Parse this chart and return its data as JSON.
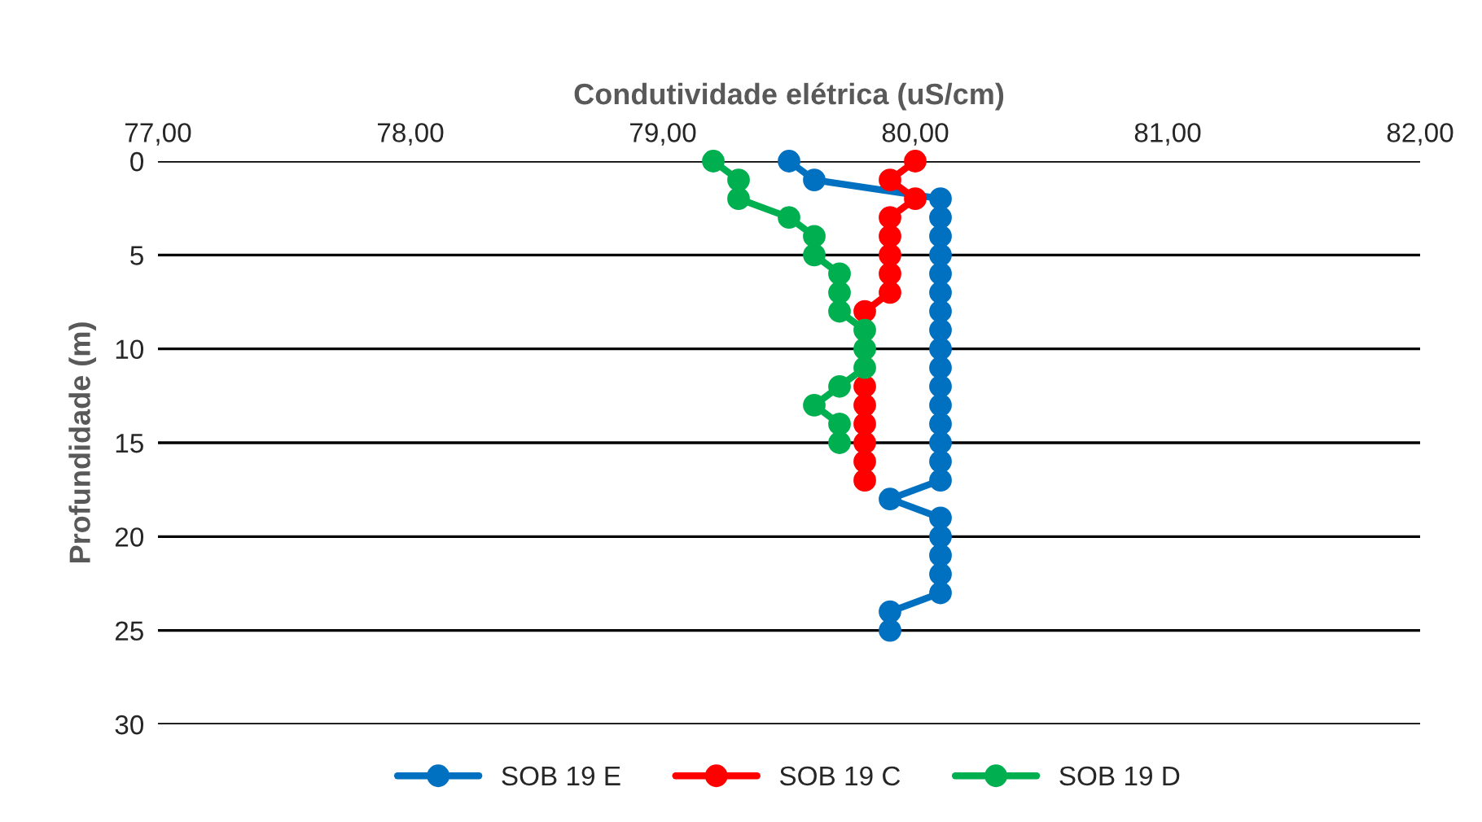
{
  "chart_data": {
    "type": "line",
    "xlabel": "Condutividade elétrica (uS/cm)",
    "ylabel": "Profundidade (m)",
    "xlim": [
      77,
      82
    ],
    "xticks": [
      {
        "value": 77,
        "label": "77,00"
      },
      {
        "value": 78,
        "label": "78,00"
      },
      {
        "value": 79,
        "label": "79,00"
      },
      {
        "value": 80,
        "label": "80,00"
      },
      {
        "value": 81,
        "label": "81,00"
      },
      {
        "value": 82,
        "label": "82,00"
      }
    ],
    "ylim": [
      30,
      0
    ],
    "yticks": [
      0,
      5,
      10,
      15,
      20,
      25,
      30
    ],
    "grid": "y",
    "legend": "bottom",
    "marker": "circle",
    "line_style": "solid",
    "series": [
      {
        "name": "SOB 19 E",
        "color": "#0070c0",
        "x": [
          79.5,
          79.6,
          80.1,
          80.1,
          80.1,
          80.1,
          80.1,
          80.1,
          80.1,
          80.1,
          80.1,
          80.1,
          80.1,
          80.1,
          80.1,
          80.1,
          80.1,
          80.1,
          79.9,
          80.1,
          80.1,
          80.1,
          80.1,
          80.1,
          79.9,
          79.9
        ],
        "values": [
          0,
          1,
          2,
          3,
          4,
          5,
          6,
          7,
          8,
          9,
          10,
          11,
          12,
          13,
          14,
          15,
          16,
          17,
          18,
          19,
          20,
          21,
          22,
          23,
          24,
          25
        ]
      },
      {
        "name": "SOB 19 C",
        "color": "#ff0000",
        "x": [
          80.0,
          79.9,
          80.0,
          79.9,
          79.9,
          79.9,
          79.9,
          79.9,
          79.8,
          79.8,
          79.8,
          79.8,
          79.8,
          79.8,
          79.8
        ],
        "values": [
          0,
          1,
          2,
          3,
          4,
          5,
          6,
          7,
          8,
          12,
          13,
          14,
          15,
          16,
          17
        ]
      },
      {
        "name": "SOB 19 D",
        "color": "#00b050",
        "x": [
          79.2,
          79.3,
          79.3,
          79.5,
          79.6,
          79.6,
          79.7,
          79.7,
          79.7,
          79.8,
          79.8,
          79.8,
          79.7,
          79.6,
          79.7,
          79.7
        ],
        "values": [
          0,
          1,
          2,
          3,
          4,
          5,
          6,
          7,
          8,
          9,
          10,
          11,
          12,
          13,
          14,
          15
        ]
      }
    ]
  }
}
